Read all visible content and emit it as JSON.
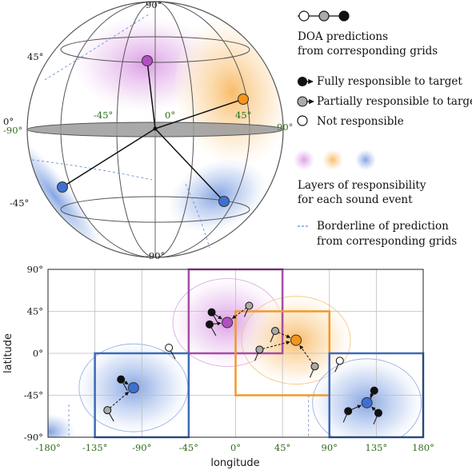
{
  "globe": {
    "labels": {
      "lat_top": "90°",
      "lat_45": "45°",
      "lat_0": "0°",
      "lat_m45": "-45°",
      "lat_bottom": "-90°",
      "lon_m90": "-90°",
      "lon_m45": "-45°",
      "lon_0": "0°",
      "lon_45": "45°",
      "lon_90": "90°"
    }
  },
  "legend": {
    "doa_title_1": "DOA predictions",
    "doa_title_2": "from corresponding grids",
    "fully": "Fully responsible to target",
    "partially": "Partially responsible to target",
    "not": "Not responsible",
    "layers_1": "Layers of responsibility",
    "layers_2": "for each sound event",
    "border_1": "Borderline of prediction",
    "border_2": "from corresponding grids"
  },
  "colors": {
    "purple": "#b24fc4",
    "orange": "#f5961c",
    "blue": "#3f6fcf",
    "box_purple": "#a64da6",
    "box_orange": "#f19a25",
    "box_blue": "#3d6bb8",
    "tick_green": "#2f6b1e"
  },
  "chart_data": {
    "type": "scatter",
    "xlabel": "longitude",
    "ylabel": "latitude",
    "xlim": [
      -180,
      180
    ],
    "ylim": [
      -90,
      90
    ],
    "xticks": [
      "-180°",
      "-135°",
      "-90°",
      "-45°",
      "0°",
      "45°",
      "90°",
      "135°",
      "180°"
    ],
    "yticks": [
      "90°",
      "45°",
      "0°",
      "-45°",
      "-90°"
    ],
    "grid": true,
    "targets": [
      {
        "color": "purple",
        "lon": -8,
        "lat": 33
      },
      {
        "color": "orange",
        "lon": 58,
        "lat": 14
      },
      {
        "color": "blue",
        "lon": -98,
        "lat": -37
      },
      {
        "color": "blue",
        "lon": 126,
        "lat": -53
      }
    ],
    "boxes": [
      {
        "color": "purple",
        "lon": [
          -45,
          45
        ],
        "lat": [
          0,
          90
        ]
      },
      {
        "color": "orange",
        "lon": [
          0,
          90
        ],
        "lat": [
          -45,
          45
        ]
      },
      {
        "color": "blue",
        "lon": [
          -135,
          -45
        ],
        "lat": [
          -90,
          0
        ]
      },
      {
        "color": "blue",
        "lon": [
          90,
          180
        ],
        "lat": [
          -90,
          0
        ]
      }
    ],
    "predictions": [
      {
        "kind": "full",
        "lon": -23,
        "lat": 44,
        "to": "purple"
      },
      {
        "kind": "full",
        "lon": -25,
        "lat": 31,
        "to": "purple"
      },
      {
        "kind": "partial",
        "lon": 13,
        "lat": 51,
        "to": "purple"
      },
      {
        "kind": "partial",
        "lon": 38,
        "lat": 24,
        "to": "orange"
      },
      {
        "kind": "partial",
        "lon": 23,
        "lat": 4,
        "to": "orange"
      },
      {
        "kind": "partial",
        "lon": 76,
        "lat": -14,
        "to": "orange"
      },
      {
        "kind": "full",
        "lon": -110,
        "lat": -28,
        "to": "blue"
      },
      {
        "kind": "partial",
        "lon": -123,
        "lat": -61,
        "to": "blue"
      },
      {
        "kind": "not",
        "lon": -64,
        "lat": 6,
        "to": "none"
      },
      {
        "kind": "not",
        "lon": 100,
        "lat": -8,
        "to": "none"
      },
      {
        "kind": "full",
        "lon": 133,
        "lat": -40,
        "to": "blue"
      },
      {
        "kind": "full",
        "lon": 108,
        "lat": -62,
        "to": "blue"
      },
      {
        "kind": "full",
        "lon": 137,
        "lat": -64,
        "to": "blue"
      }
    ]
  }
}
